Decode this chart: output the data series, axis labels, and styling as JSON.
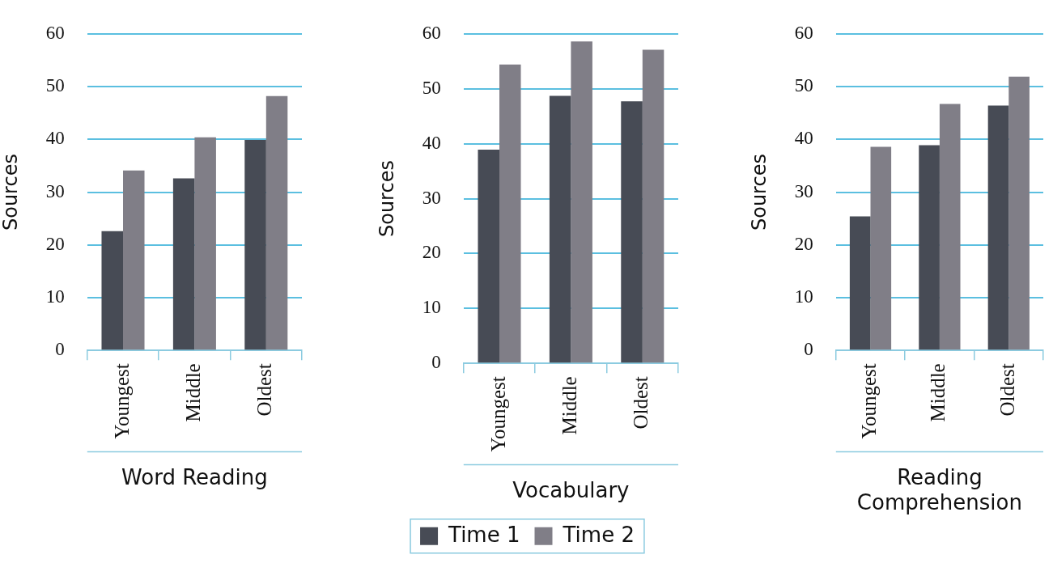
{
  "chart_data": [
    {
      "type": "bar",
      "xlabel": "Word Reading",
      "ylabel": "Sources",
      "categories": [
        "Youngest",
        "Middle",
        "Oldest"
      ],
      "series": [
        {
          "color": "#474b55",
          "values": [
            22.6,
            32.6,
            39.9
          ]
        },
        {
          "color": "#807e87",
          "values": [
            34.1,
            40.4,
            48.2
          ]
        }
      ],
      "ylim": [
        0,
        60
      ],
      "yticks": [
        0,
        10,
        20,
        30,
        40,
        50,
        60
      ],
      "grid": "y",
      "legend": false
    },
    {
      "type": "bar",
      "xlabel": "Vocabulary",
      "ylabel": "Sources",
      "categories": [
        "Youngest",
        "Middle",
        "Oldest"
      ],
      "series": [
        {
          "name": "Time 1",
          "color": "#474b55",
          "values": [
            38.9,
            48.7,
            47.7
          ]
        },
        {
          "name": "Time 2",
          "color": "#807e87",
          "values": [
            54.4,
            58.6,
            57.1
          ]
        }
      ],
      "ylim": [
        0,
        60
      ],
      "yticks": [
        0,
        10,
        20,
        30,
        40,
        50,
        60
      ],
      "grid": "y",
      "legend": "bottom"
    },
    {
      "type": "bar",
      "xlabel": "Reading Comprehension",
      "ylabel": "Sources",
      "categories": [
        "Youngest",
        "Middle",
        "Oldest"
      ],
      "series": [
        {
          "color": "#474b55",
          "values": [
            25.4,
            38.9,
            46.4
          ]
        },
        {
          "color": "#807e87",
          "values": [
            38.6,
            46.7,
            51.9
          ]
        }
      ],
      "ylim": [
        0,
        60
      ],
      "yticks": [
        0,
        10,
        20,
        30,
        40,
        50,
        60
      ],
      "grid": "y",
      "legend": false
    }
  ]
}
